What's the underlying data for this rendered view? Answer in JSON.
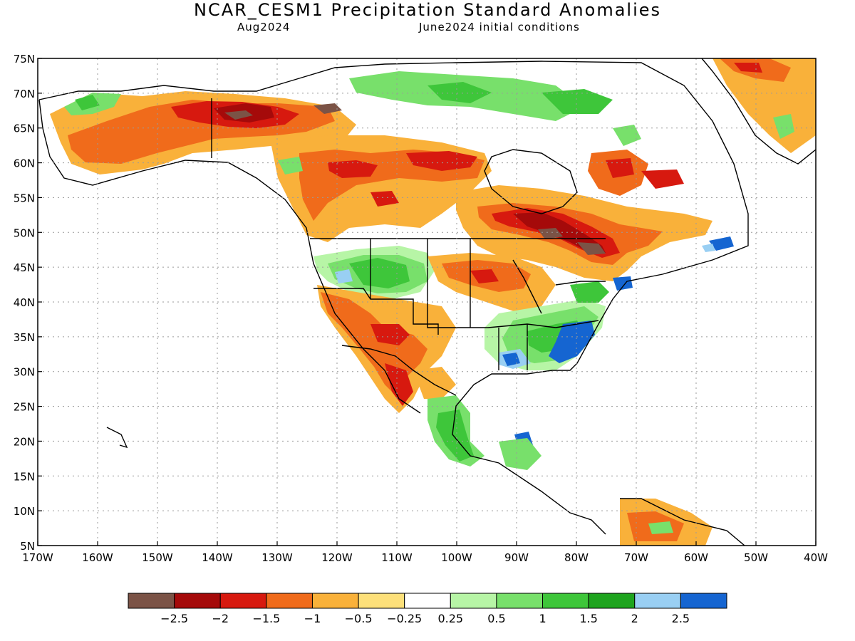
{
  "header": {
    "title": "NCAR_CESM1 Precipitation Standard Anomalies",
    "target_month": "Aug2024",
    "initial_conditions": "June2024 initial conditions"
  },
  "map": {
    "lat_labels": [
      "75N",
      "70N",
      "65N",
      "60N",
      "55N",
      "50N",
      "45N",
      "40N",
      "35N",
      "30N",
      "25N",
      "20N",
      "15N",
      "10N",
      "5N"
    ],
    "lon_labels": [
      "170W",
      "160W",
      "150W",
      "140W",
      "130W",
      "120W",
      "110W",
      "100W",
      "90W",
      "80W",
      "70W",
      "60W",
      "50W",
      "40W"
    ],
    "lat_range": [
      5,
      75
    ],
    "lon_range": [
      -170,
      -40
    ],
    "grid": true
  },
  "legend": {
    "colors": [
      "#7b5346",
      "#a50a0a",
      "#d7190f",
      "#f06b1b",
      "#f9b13a",
      "#fde07a",
      "#ffffff",
      "#b7f5a6",
      "#78e06b",
      "#3ec63a",
      "#1ea41e",
      "#99cff3",
      "#1565d1"
    ],
    "tick_labels": [
      "-2.5",
      "-2",
      "-1.5",
      "-1",
      "-0.5",
      "-0.25",
      "0.25",
      "0.5",
      "1",
      "1.5",
      "2",
      "2.5"
    ]
  }
}
